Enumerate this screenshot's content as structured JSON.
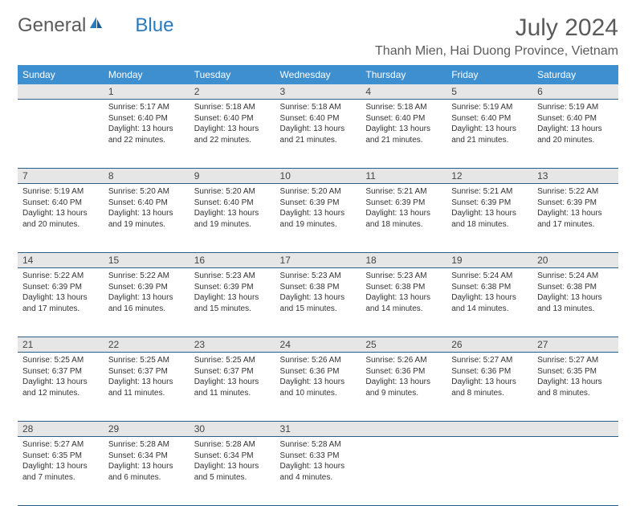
{
  "brand": {
    "part1": "General",
    "part2": "Blue"
  },
  "title": "July 2024",
  "location": "Thanh Mien, Hai Duong Province, Vietnam",
  "colors": {
    "header_bg": "#3e8fd0",
    "header_text": "#ffffff",
    "daynum_bg": "#e6e6e6",
    "border": "#2a5d8a",
    "text": "#333333",
    "title_text": "#5b5b5b",
    "brand_blue": "#2a7ac0"
  },
  "weekdays": [
    "Sunday",
    "Monday",
    "Tuesday",
    "Wednesday",
    "Thursday",
    "Friday",
    "Saturday"
  ],
  "weeks": [
    [
      null,
      {
        "n": "1",
        "sr": "Sunrise: 5:17 AM",
        "ss": "Sunset: 6:40 PM",
        "d1": "Daylight: 13 hours",
        "d2": "and 22 minutes."
      },
      {
        "n": "2",
        "sr": "Sunrise: 5:18 AM",
        "ss": "Sunset: 6:40 PM",
        "d1": "Daylight: 13 hours",
        "d2": "and 22 minutes."
      },
      {
        "n": "3",
        "sr": "Sunrise: 5:18 AM",
        "ss": "Sunset: 6:40 PM",
        "d1": "Daylight: 13 hours",
        "d2": "and 21 minutes."
      },
      {
        "n": "4",
        "sr": "Sunrise: 5:18 AM",
        "ss": "Sunset: 6:40 PM",
        "d1": "Daylight: 13 hours",
        "d2": "and 21 minutes."
      },
      {
        "n": "5",
        "sr": "Sunrise: 5:19 AM",
        "ss": "Sunset: 6:40 PM",
        "d1": "Daylight: 13 hours",
        "d2": "and 21 minutes."
      },
      {
        "n": "6",
        "sr": "Sunrise: 5:19 AM",
        "ss": "Sunset: 6:40 PM",
        "d1": "Daylight: 13 hours",
        "d2": "and 20 minutes."
      }
    ],
    [
      {
        "n": "7",
        "sr": "Sunrise: 5:19 AM",
        "ss": "Sunset: 6:40 PM",
        "d1": "Daylight: 13 hours",
        "d2": "and 20 minutes."
      },
      {
        "n": "8",
        "sr": "Sunrise: 5:20 AM",
        "ss": "Sunset: 6:40 PM",
        "d1": "Daylight: 13 hours",
        "d2": "and 19 minutes."
      },
      {
        "n": "9",
        "sr": "Sunrise: 5:20 AM",
        "ss": "Sunset: 6:40 PM",
        "d1": "Daylight: 13 hours",
        "d2": "and 19 minutes."
      },
      {
        "n": "10",
        "sr": "Sunrise: 5:20 AM",
        "ss": "Sunset: 6:39 PM",
        "d1": "Daylight: 13 hours",
        "d2": "and 19 minutes."
      },
      {
        "n": "11",
        "sr": "Sunrise: 5:21 AM",
        "ss": "Sunset: 6:39 PM",
        "d1": "Daylight: 13 hours",
        "d2": "and 18 minutes."
      },
      {
        "n": "12",
        "sr": "Sunrise: 5:21 AM",
        "ss": "Sunset: 6:39 PM",
        "d1": "Daylight: 13 hours",
        "d2": "and 18 minutes."
      },
      {
        "n": "13",
        "sr": "Sunrise: 5:22 AM",
        "ss": "Sunset: 6:39 PM",
        "d1": "Daylight: 13 hours",
        "d2": "and 17 minutes."
      }
    ],
    [
      {
        "n": "14",
        "sr": "Sunrise: 5:22 AM",
        "ss": "Sunset: 6:39 PM",
        "d1": "Daylight: 13 hours",
        "d2": "and 17 minutes."
      },
      {
        "n": "15",
        "sr": "Sunrise: 5:22 AM",
        "ss": "Sunset: 6:39 PM",
        "d1": "Daylight: 13 hours",
        "d2": "and 16 minutes."
      },
      {
        "n": "16",
        "sr": "Sunrise: 5:23 AM",
        "ss": "Sunset: 6:39 PM",
        "d1": "Daylight: 13 hours",
        "d2": "and 15 minutes."
      },
      {
        "n": "17",
        "sr": "Sunrise: 5:23 AM",
        "ss": "Sunset: 6:38 PM",
        "d1": "Daylight: 13 hours",
        "d2": "and 15 minutes."
      },
      {
        "n": "18",
        "sr": "Sunrise: 5:23 AM",
        "ss": "Sunset: 6:38 PM",
        "d1": "Daylight: 13 hours",
        "d2": "and 14 minutes."
      },
      {
        "n": "19",
        "sr": "Sunrise: 5:24 AM",
        "ss": "Sunset: 6:38 PM",
        "d1": "Daylight: 13 hours",
        "d2": "and 14 minutes."
      },
      {
        "n": "20",
        "sr": "Sunrise: 5:24 AM",
        "ss": "Sunset: 6:38 PM",
        "d1": "Daylight: 13 hours",
        "d2": "and 13 minutes."
      }
    ],
    [
      {
        "n": "21",
        "sr": "Sunrise: 5:25 AM",
        "ss": "Sunset: 6:37 PM",
        "d1": "Daylight: 13 hours",
        "d2": "and 12 minutes."
      },
      {
        "n": "22",
        "sr": "Sunrise: 5:25 AM",
        "ss": "Sunset: 6:37 PM",
        "d1": "Daylight: 13 hours",
        "d2": "and 11 minutes."
      },
      {
        "n": "23",
        "sr": "Sunrise: 5:25 AM",
        "ss": "Sunset: 6:37 PM",
        "d1": "Daylight: 13 hours",
        "d2": "and 11 minutes."
      },
      {
        "n": "24",
        "sr": "Sunrise: 5:26 AM",
        "ss": "Sunset: 6:36 PM",
        "d1": "Daylight: 13 hours",
        "d2": "and 10 minutes."
      },
      {
        "n": "25",
        "sr": "Sunrise: 5:26 AM",
        "ss": "Sunset: 6:36 PM",
        "d1": "Daylight: 13 hours",
        "d2": "and 9 minutes."
      },
      {
        "n": "26",
        "sr": "Sunrise: 5:27 AM",
        "ss": "Sunset: 6:36 PM",
        "d1": "Daylight: 13 hours",
        "d2": "and 8 minutes."
      },
      {
        "n": "27",
        "sr": "Sunrise: 5:27 AM",
        "ss": "Sunset: 6:35 PM",
        "d1": "Daylight: 13 hours",
        "d2": "and 8 minutes."
      }
    ],
    [
      {
        "n": "28",
        "sr": "Sunrise: 5:27 AM",
        "ss": "Sunset: 6:35 PM",
        "d1": "Daylight: 13 hours",
        "d2": "and 7 minutes."
      },
      {
        "n": "29",
        "sr": "Sunrise: 5:28 AM",
        "ss": "Sunset: 6:34 PM",
        "d1": "Daylight: 13 hours",
        "d2": "and 6 minutes."
      },
      {
        "n": "30",
        "sr": "Sunrise: 5:28 AM",
        "ss": "Sunset: 6:34 PM",
        "d1": "Daylight: 13 hours",
        "d2": "and 5 minutes."
      },
      {
        "n": "31",
        "sr": "Sunrise: 5:28 AM",
        "ss": "Sunset: 6:33 PM",
        "d1": "Daylight: 13 hours",
        "d2": "and 4 minutes."
      },
      null,
      null,
      null
    ]
  ]
}
